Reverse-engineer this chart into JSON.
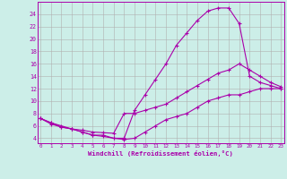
{
  "xlabel": "Windchill (Refroidissement éolien,°C)",
  "bg_color": "#cceee8",
  "grid_color": "#b0b0b0",
  "line_color": "#aa00aa",
  "x_ticks": [
    0,
    1,
    2,
    3,
    4,
    5,
    6,
    7,
    8,
    9,
    10,
    11,
    12,
    13,
    14,
    15,
    16,
    17,
    18,
    19,
    20,
    21,
    22,
    23
  ],
  "y_ticks": [
    4,
    6,
    8,
    10,
    12,
    14,
    16,
    18,
    20,
    22,
    24
  ],
  "xlim": [
    -0.3,
    23.3
  ],
  "ylim": [
    3.2,
    26.0
  ],
  "series": [
    {
      "x": [
        0,
        1,
        2,
        3,
        4,
        5,
        6,
        7,
        8,
        9,
        10,
        11,
        12,
        13,
        14,
        15,
        16,
        17,
        18,
        19,
        20,
        21,
        22,
        23
      ],
      "y": [
        7.2,
        6.5,
        6.0,
        5.5,
        5.0,
        4.5,
        4.5,
        4.0,
        4.0,
        8.5,
        11.0,
        13.5,
        16.0,
        19.0,
        21.0,
        23.0,
        24.5,
        25.0,
        25.0,
        22.5,
        14.0,
        13.0,
        12.5,
        12.0
      ]
    },
    {
      "x": [
        0,
        1,
        2,
        3,
        4,
        5,
        6,
        7,
        8,
        9,
        10,
        11,
        12,
        13,
        14,
        15,
        16,
        17,
        18,
        19,
        20,
        21,
        22,
        23
      ],
      "y": [
        7.2,
        6.5,
        5.8,
        5.5,
        5.3,
        5.0,
        4.9,
        4.8,
        8.0,
        8.0,
        8.5,
        9.0,
        9.5,
        10.5,
        11.5,
        12.5,
        13.5,
        14.5,
        15.0,
        16.0,
        15.0,
        14.0,
        13.0,
        12.3
      ]
    },
    {
      "x": [
        0,
        1,
        2,
        3,
        4,
        5,
        6,
        7,
        8,
        9,
        10,
        11,
        12,
        13,
        14,
        15,
        16,
        17,
        18,
        19,
        20,
        21,
        22,
        23
      ],
      "y": [
        7.2,
        6.3,
        5.8,
        5.5,
        5.0,
        4.5,
        4.3,
        4.0,
        3.8,
        4.0,
        5.0,
        6.0,
        7.0,
        7.5,
        8.0,
        9.0,
        10.0,
        10.5,
        11.0,
        11.0,
        11.5,
        12.0,
        12.0,
        12.0
      ]
    }
  ]
}
